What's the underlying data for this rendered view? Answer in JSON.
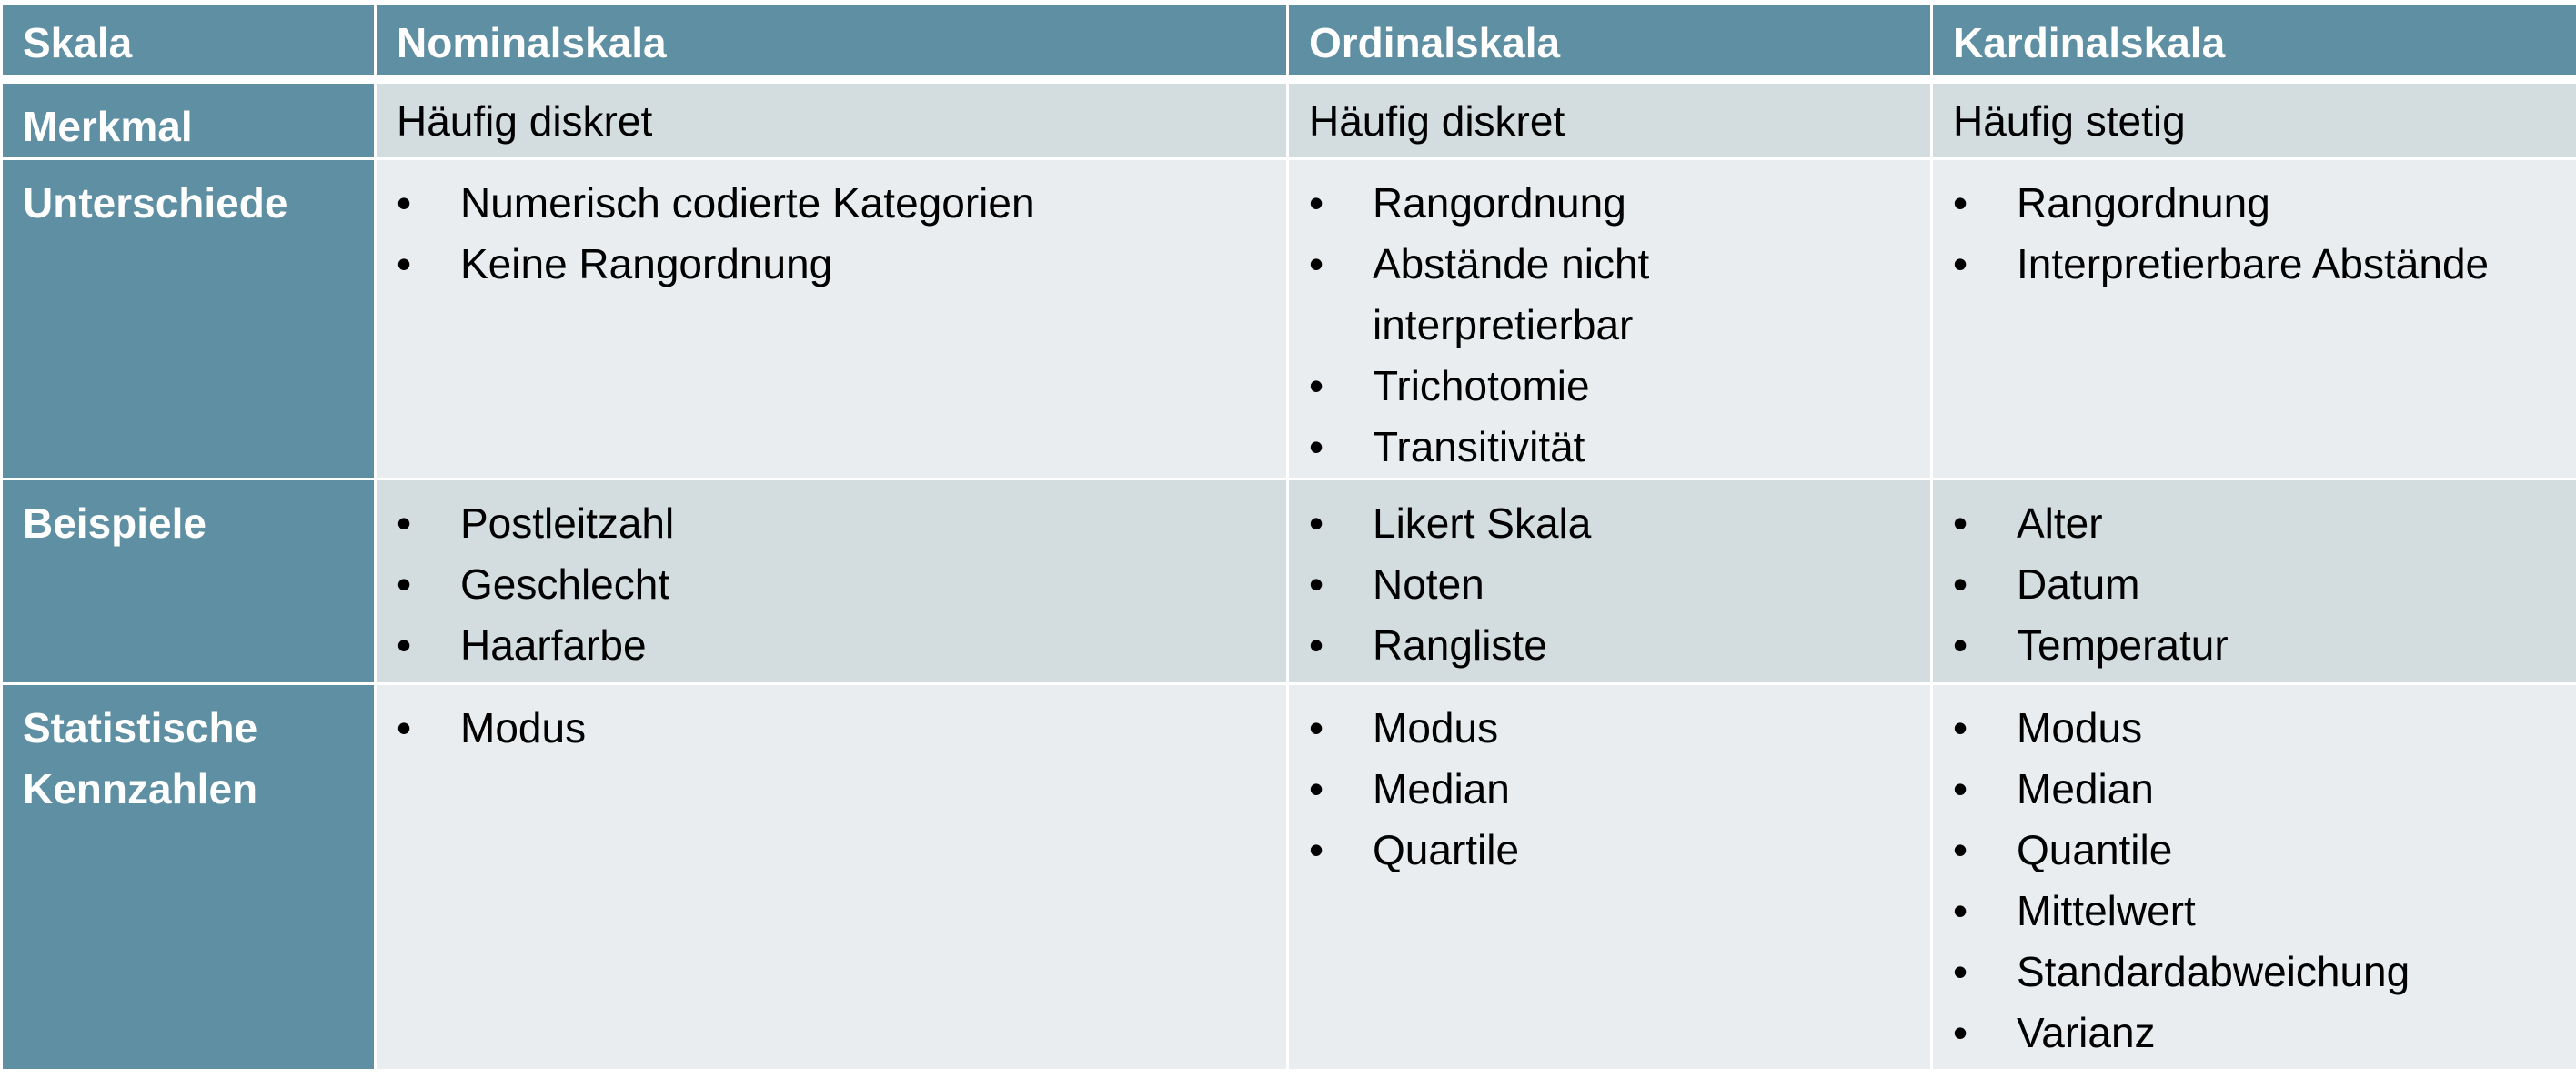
{
  "header": [
    "Skala",
    "Nominalskala",
    "Ordinalskala",
    "Kardinalskala"
  ],
  "rows": [
    {
      "label": "Merkmal",
      "cells": [
        "Häufig diskret",
        "Häufig diskret",
        "Häufig stetig"
      ]
    },
    {
      "label": "Unterschiede",
      "cells": [
        [
          "Numerisch codierte Kategorien",
          "Keine Rangordnung"
        ],
        [
          "Rangordnung",
          "Abstände nicht interpretierbar",
          "Trichotomie",
          "Transitivität"
        ],
        [
          "Rangordnung",
          "Interpretierbare Abstände"
        ]
      ]
    },
    {
      "label": "Beispiele",
      "cells": [
        [
          "Postleitzahl",
          "Geschlecht",
          "Haarfarbe"
        ],
        [
          "Likert Skala",
          "Noten",
          "Rangliste"
        ],
        [
          "Alter",
          "Datum",
          "Temperatur"
        ]
      ]
    },
    {
      "label": "Statistische Kennzahlen",
      "cells": [
        [
          "Modus"
        ],
        [
          "Modus",
          "Median",
          "Quartile"
        ],
        [
          "Modus",
          "Median",
          "Quantile",
          "Mittelwert",
          "Standardabweichung",
          "Varianz"
        ]
      ]
    }
  ],
  "colors": {
    "header": "#5f8fa2",
    "row_dark": "#d3dcdf",
    "row_light": "#e9edef"
  }
}
